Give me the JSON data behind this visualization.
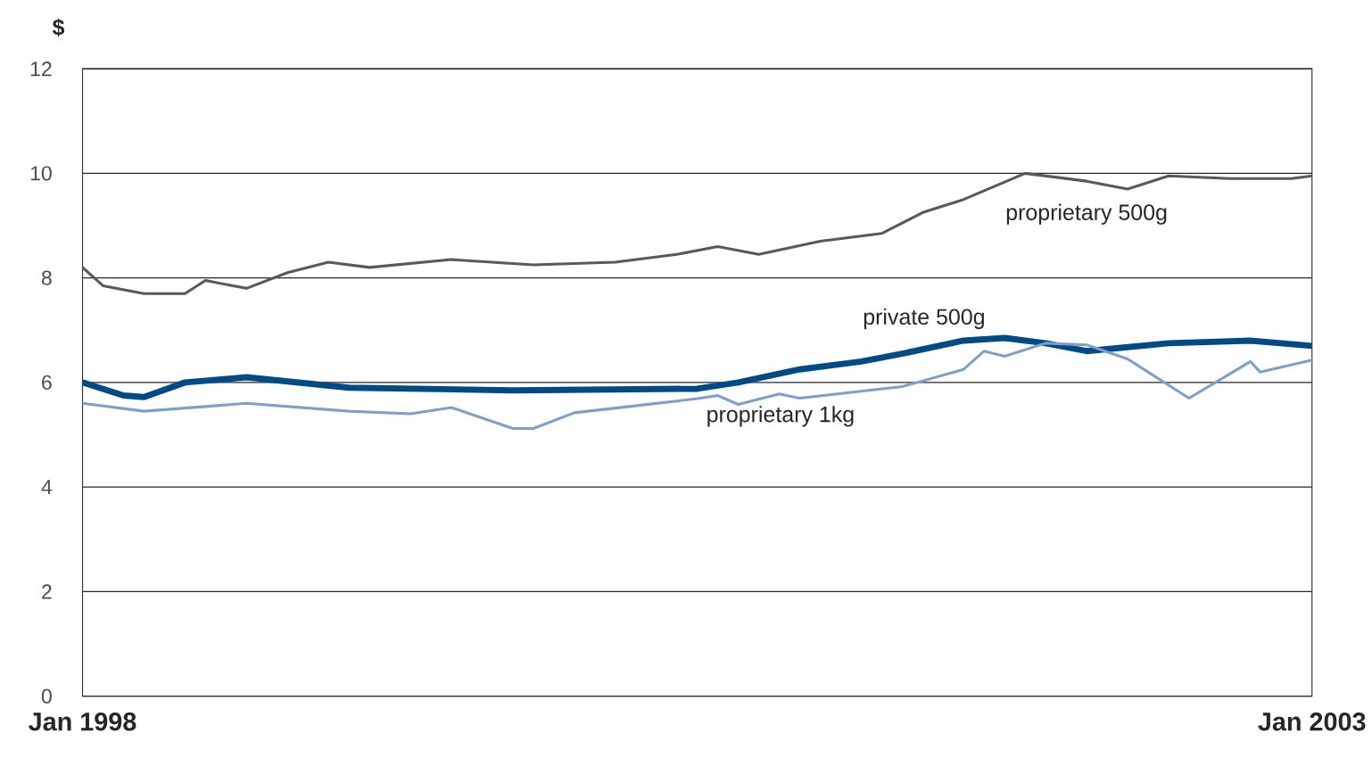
{
  "chart_data": {
    "type": "line",
    "ylabel": "$",
    "xlim": [
      "1998-01",
      "2003-01"
    ],
    "xticks": [
      {
        "value": "1998-01",
        "label": "Jan 1998"
      },
      {
        "value": "2003-01",
        "label": "Jan 2003"
      }
    ],
    "ylim": [
      0,
      12
    ],
    "yticks": [
      0,
      2,
      4,
      6,
      8,
      10,
      12
    ],
    "grid": "y",
    "legend": false,
    "marker": "none",
    "line_style": "solid",
    "series": [
      {
        "name": "proprietary 500g",
        "color": "#58595b",
        "x": [
          "1998-01",
          "1998-02",
          "1998-04",
          "1998-06",
          "1998-07",
          "1998-09",
          "1998-11",
          "1999-01",
          "1999-03",
          "1999-07",
          "1999-11",
          "2000-03",
          "2000-06",
          "2000-08",
          "2000-10",
          "2001-01",
          "2001-04",
          "2001-06",
          "2001-08",
          "2001-11",
          "2002-02",
          "2002-04",
          "2002-06",
          "2002-09",
          "2002-12",
          "2003-01"
        ],
        "values": [
          8.2,
          7.85,
          7.7,
          7.7,
          7.95,
          7.8,
          8.1,
          8.3,
          8.2,
          8.35,
          8.25,
          8.3,
          8.45,
          8.6,
          8.45,
          8.7,
          8.85,
          9.25,
          9.5,
          10.0,
          9.85,
          9.7,
          9.95,
          9.9,
          9.9,
          9.95
        ]
      },
      {
        "name": "private 500g",
        "color": "#004b85",
        "x": [
          "1998-01",
          "1998-03",
          "1998-04",
          "1998-06",
          "1998-09",
          "1999-02",
          "1999-10",
          "2000-07",
          "2000-09",
          "2000-12",
          "2001-03",
          "2001-05",
          "2001-08",
          "2001-10",
          "2001-12",
          "2002-02",
          "2002-06",
          "2002-10",
          "2003-01"
        ],
        "values": [
          6.0,
          5.75,
          5.72,
          6.0,
          6.1,
          5.9,
          5.85,
          5.88,
          6.0,
          6.25,
          6.4,
          6.55,
          6.8,
          6.85,
          6.75,
          6.6,
          6.75,
          6.8,
          6.7
        ]
      },
      {
        "name": "proprietary 1kg",
        "color": "#7f9fcb",
        "x": [
          "1998-01",
          "1998-04",
          "1998-09",
          "1999-02",
          "1999-05",
          "1999-07",
          "1999-10",
          "1999-11",
          "2000-01",
          "2000-07",
          "2000-08",
          "2000-09",
          "2000-11",
          "2000-12",
          "2001-05",
          "2001-08",
          "2001-09",
          "2001-10",
          "2001-12",
          "2002-02",
          "2002-04",
          "2002-07",
          "2002-10",
          "2002-10-15",
          "2003-01"
        ],
        "values": [
          5.6,
          5.45,
          5.6,
          5.45,
          5.4,
          5.52,
          5.12,
          5.12,
          5.42,
          5.69,
          5.75,
          5.58,
          5.78,
          5.7,
          5.92,
          6.25,
          6.6,
          6.5,
          6.75,
          6.72,
          6.45,
          5.7,
          6.4,
          6.2,
          6.43
        ]
      }
    ]
  }
}
